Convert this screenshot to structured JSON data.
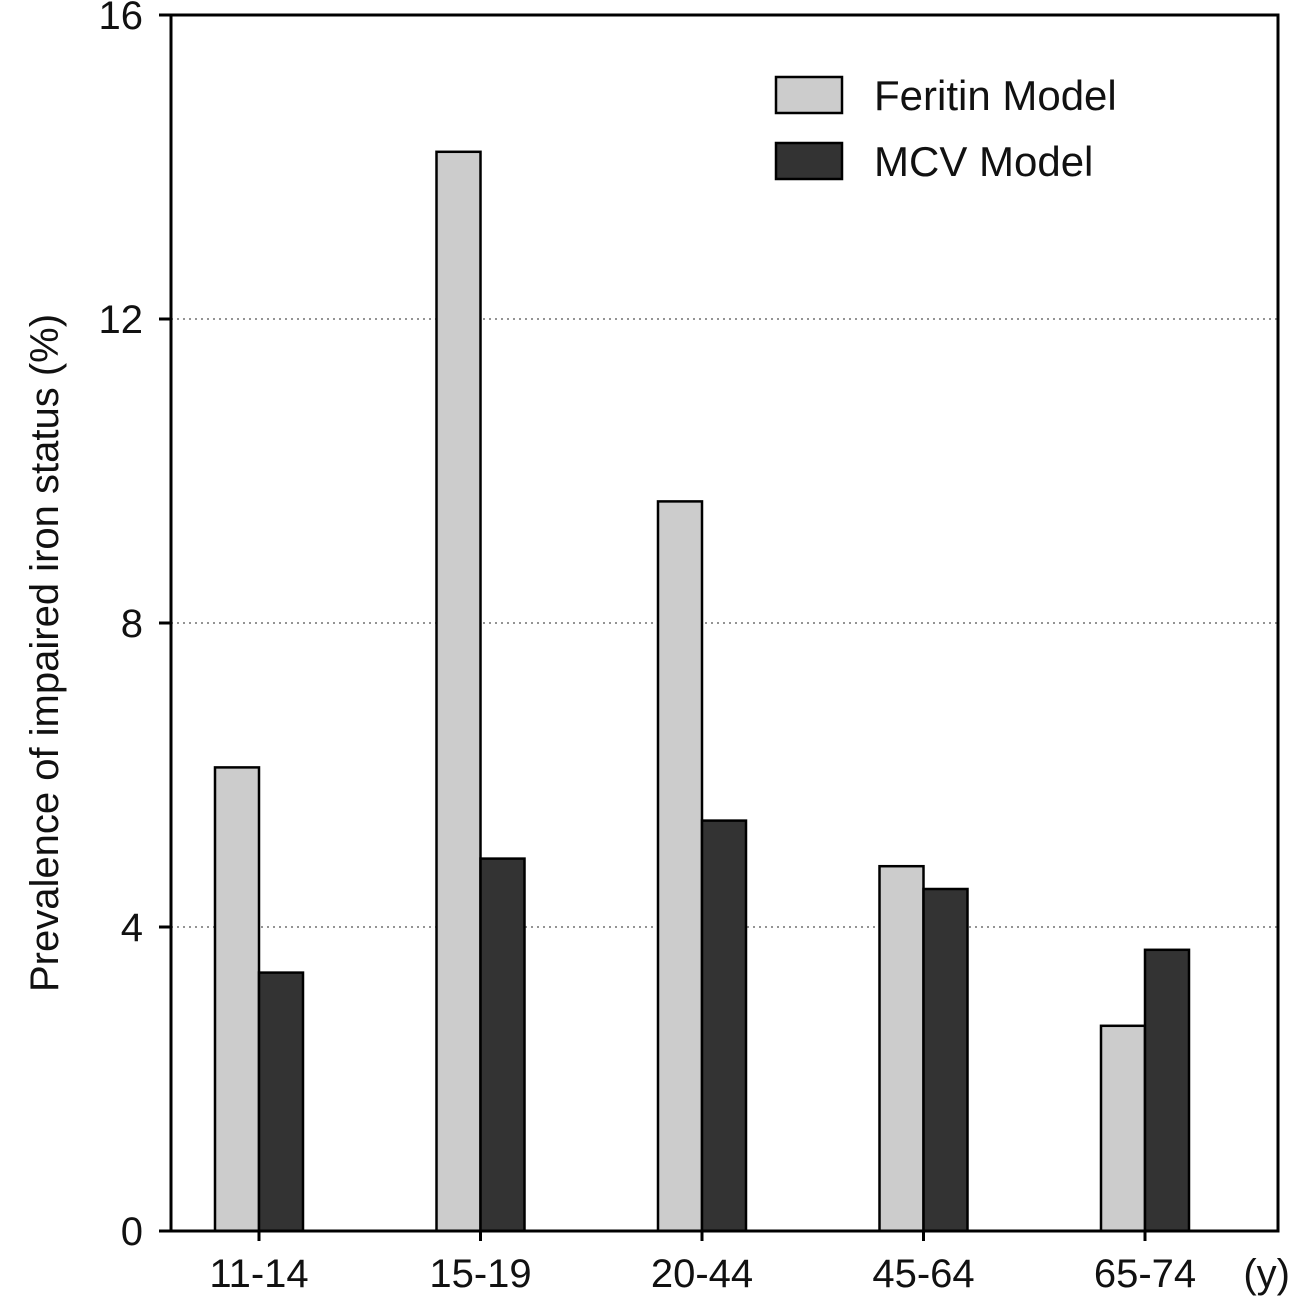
{
  "chart_data": {
    "type": "bar",
    "categories": [
      "11-14",
      "15-19",
      "20-44",
      "45-64",
      "65-74"
    ],
    "x_unit_label": "(y)",
    "series": [
      {
        "name": "Feritin Model",
        "color": "#cccccc",
        "values": [
          6.1,
          14.2,
          9.6,
          4.8,
          2.7
        ]
      },
      {
        "name": "MCV Model",
        "color": "#333333",
        "values": [
          3.4,
          4.9,
          5.4,
          4.5,
          3.7
        ]
      }
    ],
    "ylabel": "Prevalence of impaired iron status (%)",
    "ylim": [
      0,
      16
    ],
    "yticks": [
      0,
      4,
      8,
      12,
      16
    ],
    "grid": {
      "horizontal": true,
      "style": "dotted"
    },
    "legend_position": "top-right"
  }
}
